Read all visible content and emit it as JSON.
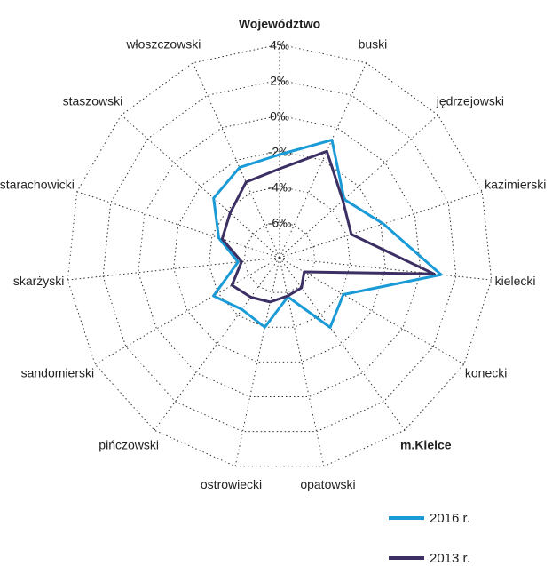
{
  "chart_data": {
    "type": "radar",
    "categories": [
      "Województwo",
      "buski",
      "jędrzejowski",
      "kazimierski",
      "kielecki",
      "konecki",
      "m.Kielce",
      "opatowski",
      "ostrowiecki",
      "pińczowski",
      "sandomierski",
      "skarżyski",
      "starachowicki",
      "staszowski",
      "włoszczowski"
    ],
    "series": [
      {
        "name": "2016 r.",
        "color": "#1a9ad6",
        "values": [
          -2.2,
          -0.75,
          -3.1,
          -1.85,
          1.15,
          -3.85,
          -3.15,
          -5.75,
          -4.0,
          -4.4,
          -3.7,
          -5.65,
          -4.4,
          -3.0,
          -2.45
        ]
      },
      {
        "name": "2013 r.",
        "color": "#3b2f63",
        "values": [
          -3.0,
          -1.45,
          -3.2,
          -3.75,
          0.75,
          -6.4,
          -5.9,
          -5.8,
          -5.45,
          -5.25,
          -4.9,
          -5.85,
          -4.6,
          -4.25,
          -3.35
        ]
      }
    ],
    "ylim": [
      -8,
      4
    ],
    "yticks": [
      {
        "value": 4,
        "label": "4‰"
      },
      {
        "value": 2,
        "label": "2‰"
      },
      {
        "value": 0,
        "label": "0‰"
      },
      {
        "value": -2,
        "label": "-2‰"
      },
      {
        "value": -4,
        "label": "-4‰"
      },
      {
        "value": -6,
        "label": "-6‰"
      }
    ],
    "grid": true,
    "legend": "bottom-right"
  }
}
